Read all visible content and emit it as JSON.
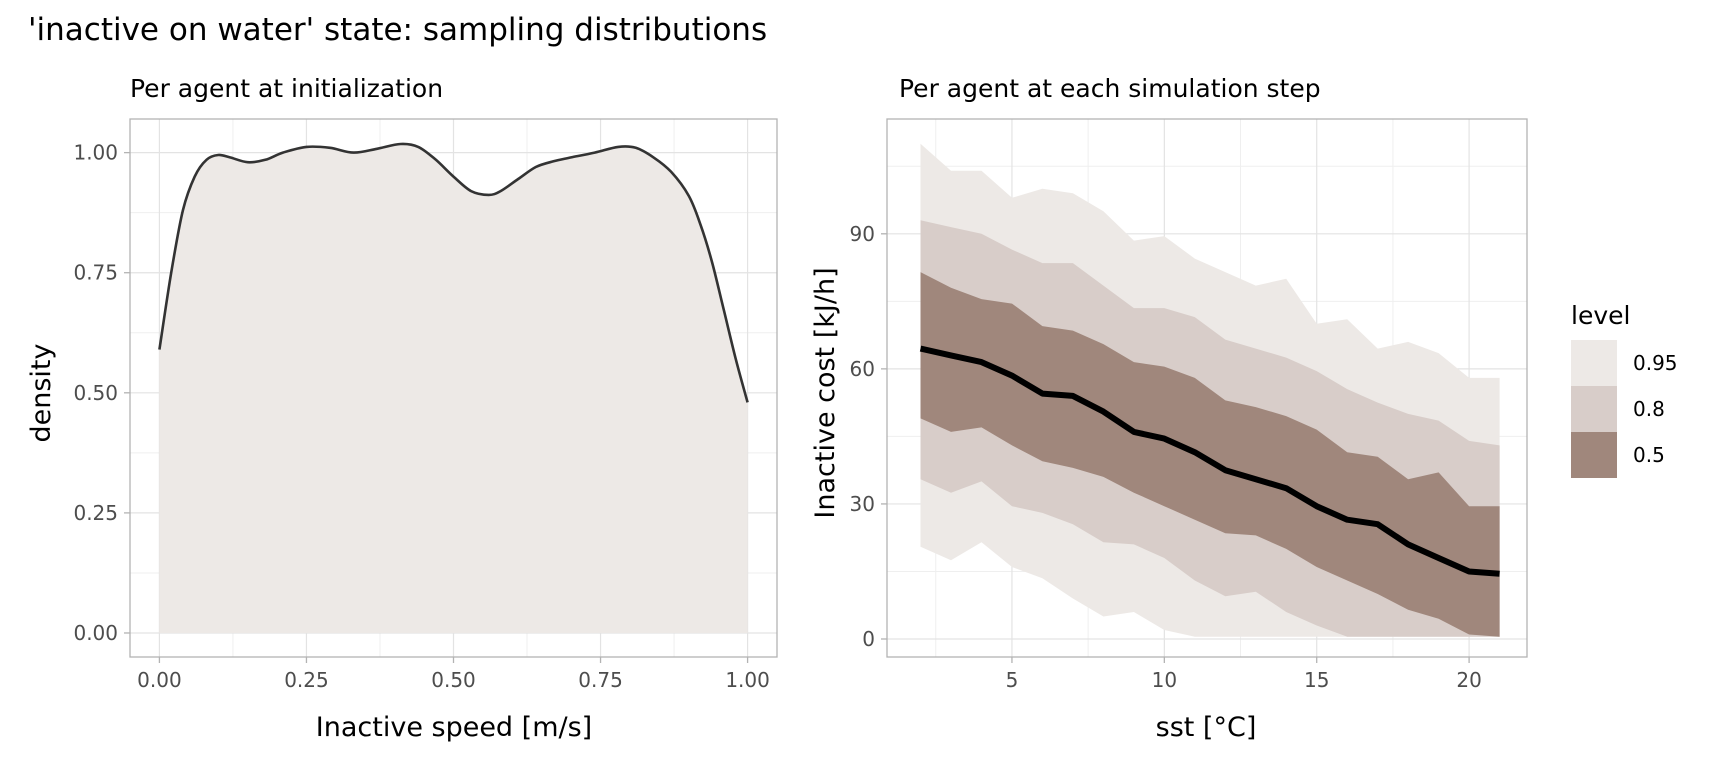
{
  "title": "'inactive on water' state: sampling distributions",
  "colors": {
    "band_95": "#ede9e6",
    "band_80": "#d8cdc9",
    "band_50": "#a0877c",
    "median_line": "#000000",
    "density_fill": "#ede9e6",
    "density_line": "#333333"
  },
  "chart_data": [
    {
      "type": "area",
      "title": "Per agent at initialization",
      "xlabel": "Inactive speed [m/s]",
      "ylabel": "density",
      "xlim": [
        -0.05,
        1.05
      ],
      "ylim": [
        -0.05,
        1.07
      ],
      "xticks": [
        0,
        0.25,
        0.5,
        0.75,
        1
      ],
      "xtick_labels": [
        "0.00",
        "0.25",
        "0.50",
        "0.75",
        "1.00"
      ],
      "yticks": [
        0,
        0.25,
        0.5,
        0.75,
        1
      ],
      "ytick_labels": [
        "0.00",
        "0.25",
        "0.50",
        "0.75",
        "1.00"
      ],
      "grid": true,
      "x": [
        0,
        0.02,
        0.04,
        0.06,
        0.08,
        0.1,
        0.12,
        0.15,
        0.18,
        0.21,
        0.25,
        0.29,
        0.33,
        0.37,
        0.41,
        0.44,
        0.47,
        0.5,
        0.53,
        0.56,
        0.58,
        0.61,
        0.64,
        0.67,
        0.7,
        0.74,
        0.78,
        0.81,
        0.84,
        0.87,
        0.9,
        0.92,
        0.94,
        0.96,
        0.98,
        1.0
      ],
      "y": [
        0.59,
        0.75,
        0.88,
        0.95,
        0.985,
        0.995,
        0.99,
        0.98,
        0.985,
        1.0,
        1.012,
        1.01,
        1.0,
        1.008,
        1.018,
        1.012,
        0.985,
        0.95,
        0.92,
        0.912,
        0.92,
        0.945,
        0.97,
        0.982,
        0.99,
        1.0,
        1.012,
        1.01,
        0.99,
        0.96,
        0.91,
        0.85,
        0.77,
        0.67,
        0.57,
        0.48
      ]
    },
    {
      "type": "area",
      "title": "Per agent at each simulation step",
      "xlabel": "sst [°C]",
      "ylabel": "Inactive cost [kJ/h]",
      "xlim": [
        0.9,
        21.9
      ],
      "ylim": [
        -4,
        115.5
      ],
      "xticks": [
        5,
        10,
        15,
        20
      ],
      "xtick_labels": [
        "5",
        "10",
        "15",
        "20"
      ],
      "yticks": [
        0,
        30,
        60,
        90
      ],
      "ytick_labels": [
        "0",
        "30",
        "60",
        "90"
      ],
      "grid": true,
      "legend": {
        "title": "level",
        "position": "right",
        "entries": [
          {
            "label": "0.95",
            "color": "#ede9e6"
          },
          {
            "label": "0.8",
            "color": "#d8cdc9"
          },
          {
            "label": "0.5",
            "color": "#a0877c"
          }
        ]
      },
      "x": [
        2,
        3,
        4,
        5,
        6,
        7,
        8,
        9,
        10,
        11,
        12,
        13,
        14,
        15,
        16,
        17,
        18,
        19,
        20,
        21
      ],
      "median": [
        64.5,
        63,
        61.5,
        58.5,
        54.5,
        54,
        50.5,
        46,
        44.5,
        41.5,
        37.5,
        35.5,
        33.5,
        29.5,
        26.5,
        25.5,
        21,
        18,
        15,
        14.5
      ],
      "bands": [
        {
          "level": "0.95",
          "upper": [
            110,
            104,
            104,
            98,
            100,
            99,
            95,
            88.5,
            89.5,
            84.5,
            81.5,
            78.5,
            80,
            70,
            71,
            64.5,
            66,
            63.5,
            58,
            58
          ],
          "lower": [
            20.5,
            17.5,
            21.5,
            16,
            13.5,
            9,
            5,
            6,
            2,
            0.5,
            0.5,
            0.5,
            0.5,
            0.5,
            0.5,
            0.5,
            0.5,
            0.5,
            0.5,
            0.5
          ]
        },
        {
          "level": "0.8",
          "upper": [
            93,
            91.5,
            90,
            86.5,
            83.5,
            83.5,
            78.5,
            73.5,
            73.5,
            71.5,
            66.5,
            64.5,
            62.5,
            59.5,
            55.5,
            52.5,
            50,
            48.5,
            44,
            43
          ],
          "lower": [
            35.5,
            32.5,
            35,
            29.5,
            28,
            25.5,
            21.5,
            21,
            18,
            13,
            9.5,
            10.5,
            6,
            3,
            0.5,
            0.5,
            0.5,
            0.5,
            0.5,
            0.5
          ]
        },
        {
          "level": "0.5",
          "upper": [
            81.5,
            78,
            75.5,
            74.5,
            69.5,
            68.5,
            65.5,
            61.5,
            60.5,
            58,
            53,
            51.5,
            49.5,
            46.5,
            41.5,
            40.5,
            35.5,
            37,
            29.5,
            29.5
          ],
          "lower": [
            49,
            46,
            47,
            43,
            39.5,
            38,
            36,
            32.5,
            29.5,
            26.5,
            23.5,
            23,
            20,
            16,
            13,
            10,
            6.5,
            4.5,
            1,
            0.5
          ]
        }
      ]
    }
  ]
}
